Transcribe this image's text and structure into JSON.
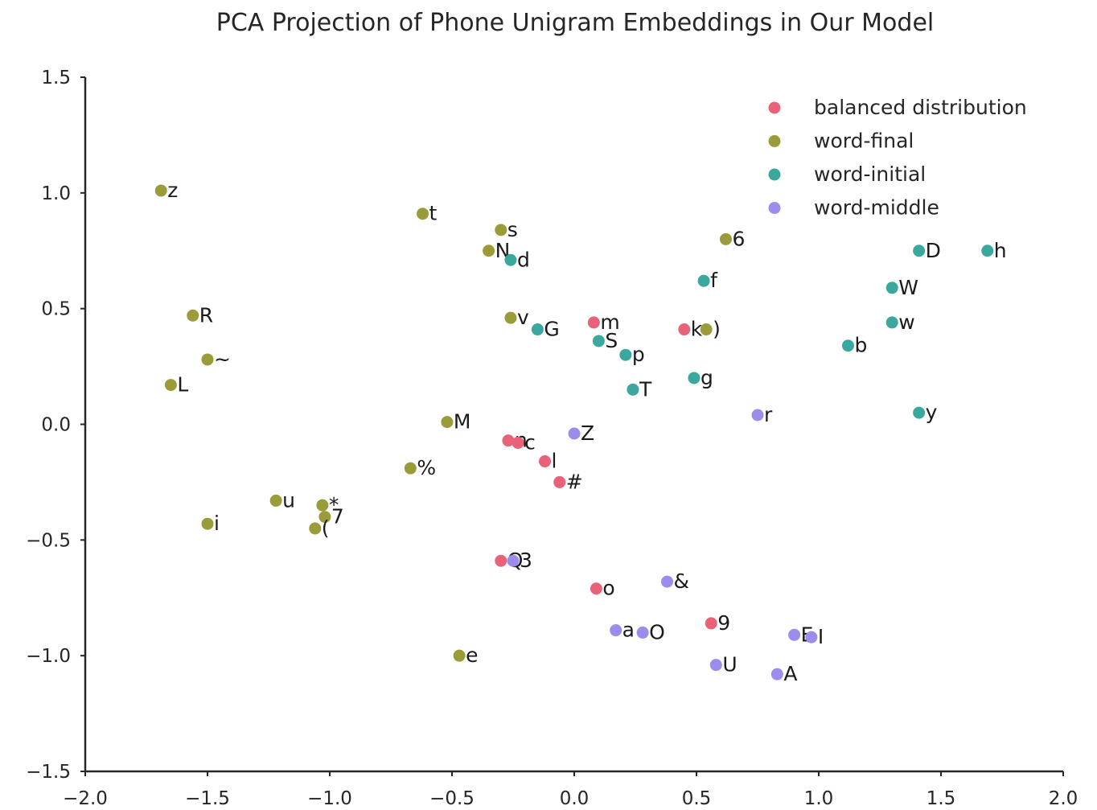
{
  "chart_data": {
    "type": "scatter",
    "title": "PCA Projection of Phone Unigram Embeddings in Our Model",
    "xlabel": "",
    "ylabel": "",
    "xlim": [
      -2.0,
      2.0
    ],
    "ylim": [
      -1.5,
      1.5
    ],
    "xticks": [
      -2.0,
      -1.5,
      -1.0,
      -0.5,
      0.0,
      0.5,
      1.0,
      1.5,
      2.0
    ],
    "yticks": [
      -1.5,
      -1.0,
      -0.5,
      0.0,
      0.5,
      1.0,
      1.5
    ],
    "xtick_labels": [
      "−2.0",
      "−1.5",
      "−1.0",
      "−0.5",
      "0.0",
      "0.5",
      "1.0",
      "1.5",
      "2.0"
    ],
    "ytick_labels": [
      "−1.5",
      "−1.0",
      "−0.5",
      "0.0",
      "0.5",
      "1.0",
      "1.5"
    ],
    "grid": false,
    "legend_position": "top-right",
    "series": [
      {
        "name": "balanced distribution",
        "color": "#e8637a",
        "points": [
          {
            "label": "m",
            "x": 0.08,
            "y": 0.44
          },
          {
            "label": "k",
            "x": 0.45,
            "y": 0.41
          },
          {
            "label": "n",
            "x": -0.27,
            "y": -0.07
          },
          {
            "label": "c",
            "x": -0.23,
            "y": -0.08
          },
          {
            "label": "l",
            "x": -0.12,
            "y": -0.16
          },
          {
            "label": "#",
            "x": -0.06,
            "y": -0.25
          },
          {
            "label": "Q",
            "x": -0.3,
            "y": -0.59
          },
          {
            "label": "o",
            "x": 0.09,
            "y": -0.71
          },
          {
            "label": "9",
            "x": 0.56,
            "y": -0.86
          }
        ]
      },
      {
        "name": "word-final",
        "color": "#9a9c3a",
        "points": [
          {
            "label": "z",
            "x": -1.69,
            "y": 1.01
          },
          {
            "label": "t",
            "x": -0.62,
            "y": 0.91
          },
          {
            "label": "s",
            "x": -0.3,
            "y": 0.84
          },
          {
            "label": "N",
            "x": -0.35,
            "y": 0.75
          },
          {
            "label": "6",
            "x": 0.62,
            "y": 0.8
          },
          {
            "label": "R",
            "x": -1.56,
            "y": 0.47
          },
          {
            "label": "v",
            "x": -0.26,
            "y": 0.46
          },
          {
            "label": ")",
            "x": 0.54,
            "y": 0.41
          },
          {
            "label": "~",
            "x": -1.5,
            "y": 0.28
          },
          {
            "label": "L",
            "x": -1.65,
            "y": 0.17
          },
          {
            "label": "M",
            "x": -0.52,
            "y": 0.01
          },
          {
            "label": "%",
            "x": -0.67,
            "y": -0.19
          },
          {
            "label": "u",
            "x": -1.22,
            "y": -0.33
          },
          {
            "label": "*",
            "x": -1.03,
            "y": -0.35
          },
          {
            "label": "7",
            "x": -1.02,
            "y": -0.4
          },
          {
            "label": "(",
            "x": -1.06,
            "y": -0.45
          },
          {
            "label": "i",
            "x": -1.5,
            "y": -0.43
          },
          {
            "label": "e",
            "x": -0.47,
            "y": -1.0
          }
        ]
      },
      {
        "name": "word-initial",
        "color": "#3aa89c",
        "points": [
          {
            "label": "d",
            "x": -0.26,
            "y": 0.71
          },
          {
            "label": "D",
            "x": 1.41,
            "y": 0.75
          },
          {
            "label": "h",
            "x": 1.69,
            "y": 0.75
          },
          {
            "label": "f",
            "x": 0.53,
            "y": 0.62
          },
          {
            "label": "W",
            "x": 1.3,
            "y": 0.59
          },
          {
            "label": "G",
            "x": -0.15,
            "y": 0.41
          },
          {
            "label": "w",
            "x": 1.3,
            "y": 0.44
          },
          {
            "label": "S",
            "x": 0.1,
            "y": 0.36
          },
          {
            "label": "b",
            "x": 1.12,
            "y": 0.34
          },
          {
            "label": "p",
            "x": 0.21,
            "y": 0.3
          },
          {
            "label": "g",
            "x": 0.49,
            "y": 0.2
          },
          {
            "label": "T",
            "x": 0.24,
            "y": 0.15
          },
          {
            "label": "y",
            "x": 1.41,
            "y": 0.05
          }
        ]
      },
      {
        "name": "word-middle",
        "color": "#9d8cec",
        "points": [
          {
            "label": "r",
            "x": 0.75,
            "y": 0.04
          },
          {
            "label": "Z",
            "x": 0.0,
            "y": -0.04
          },
          {
            "label": "3",
            "x": -0.25,
            "y": -0.59
          },
          {
            "label": "&",
            "x": 0.38,
            "y": -0.68
          },
          {
            "label": "a",
            "x": 0.17,
            "y": -0.89
          },
          {
            "label": "O",
            "x": 0.28,
            "y": -0.9
          },
          {
            "label": "E",
            "x": 0.9,
            "y": -0.91
          },
          {
            "label": "I",
            "x": 0.97,
            "y": -0.92
          },
          {
            "label": "U",
            "x": 0.58,
            "y": -1.04
          },
          {
            "label": "A",
            "x": 0.83,
            "y": -1.08
          }
        ]
      }
    ]
  }
}
